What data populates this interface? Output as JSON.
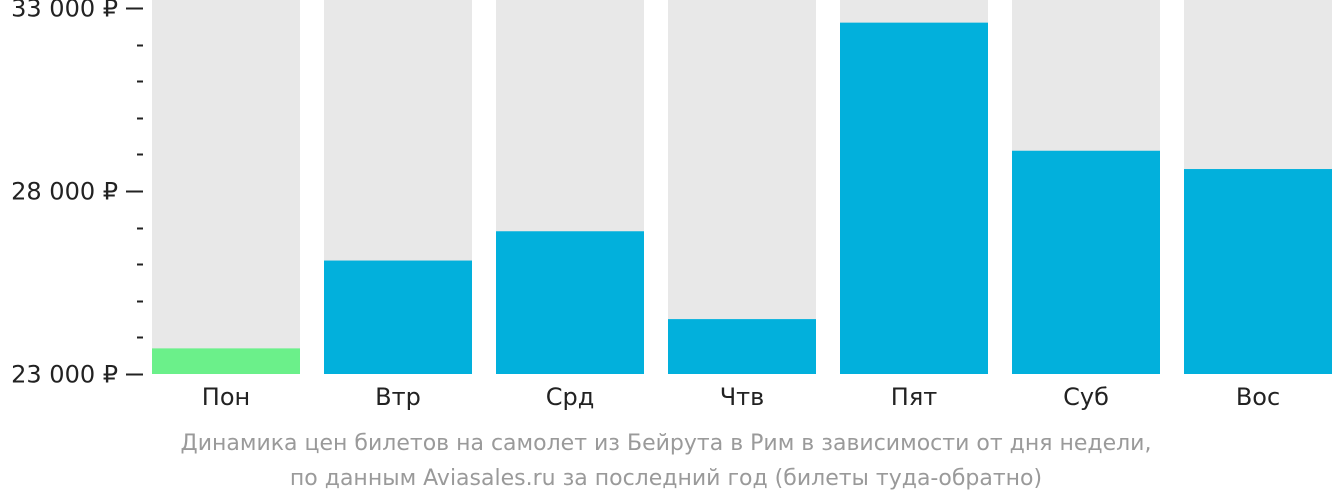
{
  "chart_data": {
    "type": "bar",
    "categories": [
      "Пон",
      "Втр",
      "Срд",
      "Чтв",
      "Пят",
      "Суб",
      "Вос"
    ],
    "values": [
      23700,
      26100,
      26900,
      24500,
      32600,
      29100,
      28600
    ],
    "ylim": [
      23000,
      33000
    ],
    "y_ticks": [
      {
        "value": 33000,
        "label": "33 000 ₽"
      },
      {
        "value": 28000,
        "label": "28 000 ₽"
      },
      {
        "value": 23000,
        "label": "23 000 ₽"
      }
    ],
    "y_minor_step": 1000,
    "grid": false,
    "colors": {
      "bar": "#02b0dc",
      "lowest_bar": "#6bf08a",
      "background_bar": "#e8e8e8",
      "axis": "#222222"
    },
    "lowest_index": 0
  },
  "caption": {
    "line1": "Динамика цен билетов на самолет из Бейрута в Рим в зависимости от дня недели,",
    "line2": "по данным Aviasales.ru за последний год (билеты туда-обратно)"
  }
}
